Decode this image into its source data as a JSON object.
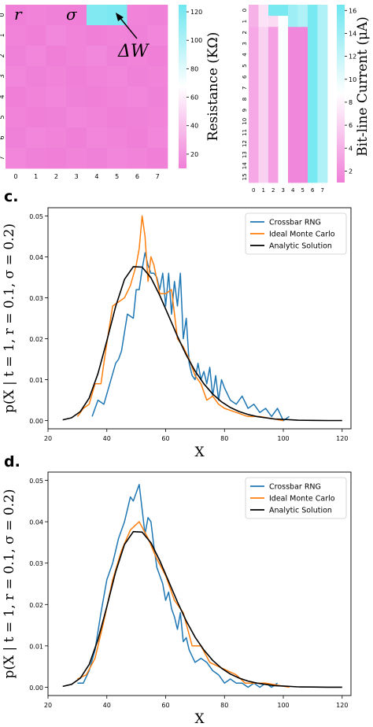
{
  "chart_data": [
    {
      "type": "heatmap",
      "rows": 8,
      "cols": 8,
      "x_ticks": [
        "0",
        "1",
        "2",
        "3",
        "4",
        "5",
        "6",
        "7"
      ],
      "y_ticks": [
        "0",
        "1",
        "2",
        "3",
        "4",
        "5",
        "6",
        "7"
      ],
      "values": [
        [
          10,
          12,
          11,
          10,
          118,
          120,
          12,
          11
        ],
        [
          12,
          10,
          14,
          12,
          10,
          12,
          11,
          13
        ],
        [
          11,
          13,
          10,
          12,
          14,
          11,
          12,
          10
        ],
        [
          13,
          11,
          12,
          10,
          12,
          13,
          11,
          12
        ],
        [
          10,
          12,
          13,
          11,
          10,
          12,
          13,
          11
        ],
        [
          12,
          10,
          11,
          13,
          12,
          10,
          11,
          12
        ],
        [
          11,
          13,
          12,
          10,
          13,
          12,
          10,
          13
        ],
        [
          13,
          11,
          10,
          12,
          11,
          13,
          12,
          10
        ]
      ],
      "colorbar": {
        "label": "Resistance (KΩ)",
        "ticks": [
          20,
          40,
          60,
          80,
          100,
          120
        ],
        "range": [
          10,
          125
        ]
      },
      "annotations": {
        "r": "r",
        "sigma": "σ",
        "delta_w": "ΔW"
      },
      "colors": {
        "low": "#f07fd8",
        "high": "#6fe6f0",
        "mid": "#ffffff"
      }
    },
    {
      "type": "heatmap",
      "rows": 16,
      "cols": 8,
      "x_ticks": [
        "0",
        "1",
        "2",
        "3",
        "4",
        "5",
        "6",
        "7"
      ],
      "y_ticks": [
        "0",
        "1",
        "2",
        "3",
        "4",
        "5",
        "6",
        "7",
        "8",
        "9",
        "10",
        "11",
        "12",
        "13",
        "14",
        "15"
      ],
      "col_values": [
        3.5,
        6.0,
        3.0,
        9.0,
        1.5,
        1.5,
        16.0,
        13.0
      ],
      "row0_values": [
        4.0,
        7.0,
        16.0,
        16.0,
        14.0,
        13.0,
        16.0,
        13.0
      ],
      "row1_values": [
        4.0,
        7.0,
        6.5,
        9.0,
        14.0,
        13.0,
        16.0,
        13.0
      ],
      "colorbar": {
        "label": "Bit-line Current (μA)",
        "ticks": [
          2,
          4,
          6,
          8,
          10,
          12,
          14,
          16
        ],
        "range": [
          1,
          16.5
        ]
      },
      "colors": {
        "low": "#f07fd8",
        "high": "#6fe6f0",
        "mid": "#ffffff"
      }
    },
    {
      "type": "line",
      "panel_label": "c.",
      "xlabel": "X",
      "ylabel": "p(X | t = 1, r = 0.1, σ = 0.2)",
      "xlim": [
        20,
        123
      ],
      "ylim": [
        -0.002,
        0.052
      ],
      "x_ticks": [
        20,
        40,
        60,
        80,
        100,
        120
      ],
      "y_ticks": [
        0.0,
        0.01,
        0.02,
        0.03,
        0.04,
        0.05
      ],
      "y_tick_labels": [
        "0.00",
        "0.01",
        "0.02",
        "0.03",
        "0.04",
        "0.05"
      ],
      "legend_position": "top-right",
      "series": [
        {
          "name": "Crossbar RNG",
          "color": "#1f77b4",
          "x": [
            35,
            37,
            39,
            41,
            43,
            44,
            45,
            47,
            49,
            50,
            51,
            52,
            53,
            54,
            55,
            56,
            57,
            58,
            59,
            60,
            61,
            62,
            63,
            64,
            65,
            66,
            67,
            68,
            69,
            70,
            71,
            72,
            73,
            74,
            75,
            76,
            77,
            78,
            79,
            80,
            82,
            84,
            86,
            88,
            90,
            92,
            94,
            96,
            98,
            100,
            102
          ],
          "y": [
            0.001,
            0.005,
            0.004,
            0.009,
            0.014,
            0.015,
            0.017,
            0.026,
            0.025,
            0.032,
            0.032,
            0.037,
            0.041,
            0.038,
            0.036,
            0.036,
            0.035,
            0.032,
            0.036,
            0.028,
            0.036,
            0.026,
            0.034,
            0.028,
            0.036,
            0.02,
            0.025,
            0.014,
            0.011,
            0.01,
            0.014,
            0.01,
            0.012,
            0.009,
            0.013,
            0.006,
            0.011,
            0.005,
            0.01,
            0.008,
            0.005,
            0.004,
            0.006,
            0.003,
            0.004,
            0.002,
            0.003,
            0.001,
            0.003,
            0.0,
            0.001
          ]
        },
        {
          "name": "Ideal Monte Carlo",
          "color": "#ff7f0e",
          "x": [
            30,
            32,
            34,
            36,
            38,
            39,
            40,
            42,
            44,
            46,
            48,
            50,
            51,
            52,
            53,
            54,
            55,
            56,
            58,
            60,
            62,
            64,
            66,
            68,
            70,
            72,
            74,
            76,
            78,
            80,
            84,
            88,
            92,
            96,
            100
          ],
          "y": [
            0.001,
            0.003,
            0.004,
            0.009,
            0.009,
            0.014,
            0.019,
            0.028,
            0.029,
            0.03,
            0.033,
            0.038,
            0.042,
            0.05,
            0.045,
            0.034,
            0.04,
            0.038,
            0.031,
            0.031,
            0.032,
            0.02,
            0.018,
            0.015,
            0.011,
            0.009,
            0.005,
            0.006,
            0.004,
            0.003,
            0.002,
            0.001,
            0.001,
            0.0005,
            0.0
          ]
        },
        {
          "name": "Analytic Solution",
          "color": "#000000",
          "x": [
            25,
            28,
            31,
            34,
            37,
            40,
            43,
            46,
            49,
            52,
            55,
            58,
            61,
            64,
            67,
            70,
            73,
            76,
            79,
            82,
            85,
            88,
            91,
            94,
            97,
            100,
            105,
            110,
            115,
            120
          ],
          "y": [
            0.0002,
            0.0007,
            0.0022,
            0.0055,
            0.0115,
            0.0195,
            0.0279,
            0.0345,
            0.0376,
            0.0375,
            0.0349,
            0.0306,
            0.0256,
            0.0206,
            0.016,
            0.0121,
            0.009,
            0.0065,
            0.0046,
            0.0032,
            0.0022,
            0.0015,
            0.001,
            0.0007,
            0.0004,
            0.0003,
            0.0001,
            5e-05,
            2e-05,
            1e-05
          ]
        }
      ]
    },
    {
      "type": "line",
      "panel_label": "d.",
      "xlabel": "X",
      "ylabel": "p(X | t = 1, r = 0.1, σ = 0.2)",
      "xlim": [
        20,
        123
      ],
      "ylim": [
        -0.002,
        0.052
      ],
      "x_ticks": [
        20,
        40,
        60,
        80,
        100,
        120
      ],
      "y_ticks": [
        0.0,
        0.01,
        0.02,
        0.03,
        0.04,
        0.05
      ],
      "y_tick_labels": [
        "0.00",
        "0.01",
        "0.02",
        "0.03",
        "0.04",
        "0.05"
      ],
      "legend_position": "top-right",
      "series": [
        {
          "name": "Crossbar RNG",
          "color": "#1f77b4",
          "x": [
            30,
            32,
            34,
            36,
            38,
            40,
            42,
            44,
            46,
            48,
            49,
            50,
            51,
            52,
            53,
            54,
            55,
            56,
            57,
            58,
            59,
            60,
            61,
            62,
            63,
            64,
            65,
            66,
            67,
            68,
            70,
            72,
            74,
            76,
            78,
            80,
            82,
            84,
            86,
            88,
            90,
            92,
            94,
            96,
            98
          ],
          "y": [
            0.001,
            0.001,
            0.004,
            0.009,
            0.018,
            0.026,
            0.03,
            0.036,
            0.04,
            0.046,
            0.045,
            0.047,
            0.049,
            0.043,
            0.037,
            0.041,
            0.04,
            0.034,
            0.029,
            0.027,
            0.025,
            0.021,
            0.023,
            0.019,
            0.017,
            0.014,
            0.018,
            0.011,
            0.012,
            0.009,
            0.006,
            0.007,
            0.006,
            0.004,
            0.003,
            0.001,
            0.002,
            0.001,
            0.001,
            0.0,
            0.001,
            0.0,
            0.001,
            0.0,
            0.001
          ]
        },
        {
          "name": "Ideal Monte Carlo",
          "color": "#ff7f0e",
          "x": [
            30,
            33,
            36,
            39,
            42,
            45,
            48,
            51,
            54,
            57,
            60,
            63,
            66,
            69,
            72,
            75,
            78,
            81,
            84,
            87,
            90,
            94,
            98,
            102
          ],
          "y": [
            0.002,
            0.003,
            0.007,
            0.016,
            0.026,
            0.033,
            0.038,
            0.04,
            0.036,
            0.031,
            0.027,
            0.021,
            0.018,
            0.01,
            0.01,
            0.006,
            0.005,
            0.004,
            0.003,
            0.001,
            0.001,
            0.001,
            0.0005,
            0.0
          ]
        },
        {
          "name": "Analytic Solution",
          "color": "#000000",
          "x": [
            25,
            28,
            31,
            34,
            37,
            40,
            43,
            46,
            49,
            52,
            55,
            58,
            61,
            64,
            67,
            70,
            73,
            76,
            79,
            82,
            85,
            88,
            91,
            94,
            97,
            100,
            105,
            110,
            115,
            120
          ],
          "y": [
            0.0002,
            0.0007,
            0.0022,
            0.0055,
            0.0115,
            0.0195,
            0.0279,
            0.0345,
            0.0376,
            0.0375,
            0.0349,
            0.0306,
            0.0256,
            0.0206,
            0.016,
            0.0121,
            0.009,
            0.0065,
            0.0046,
            0.0032,
            0.0022,
            0.0015,
            0.001,
            0.0007,
            0.0004,
            0.0003,
            0.0001,
            5e-05,
            2e-05,
            1e-05
          ]
        }
      ]
    }
  ]
}
